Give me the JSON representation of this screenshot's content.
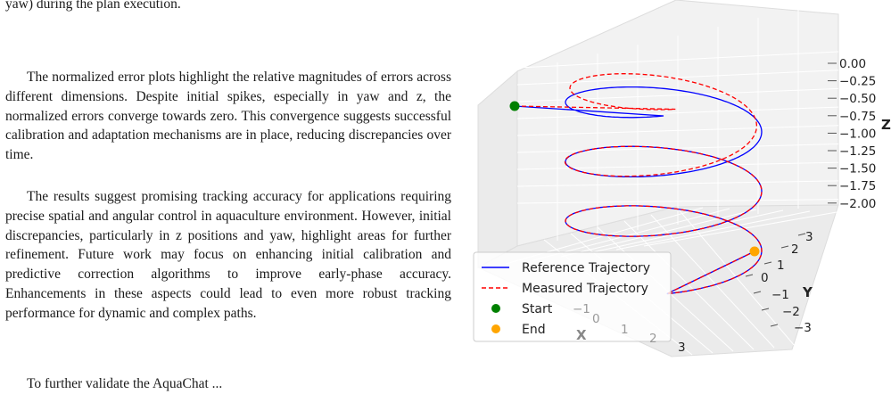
{
  "paper": {
    "caption_fragment": "yaw) during the plan execution.",
    "paragraph_1": "The normalized error plots highlight the relative magnitudes of errors across different dimensions. Despite initial spikes, especially in yaw and z, the normalized errors converge towards zero. This convergence suggests successful calibration and adaptation mechanisms are in place, reducing discrepancies over time.",
    "paragraph_2": "The results suggest promising tracking accuracy for applications requiring precise spatial and angular control in aquaculture environment. However, initial discrepancies, particularly in z positions and yaw, highlight areas for further refinement. Future work may focus on enhancing initial calibration and predictive correction algorithms to improve early-phase accuracy. Enhancements in these aspects could lead to even more robust tracking performance for dynamic and complex paths.",
    "paragraph_3_fragment": "To further validate the AquaChat ..."
  },
  "chart_data": {
    "type": "line3d",
    "title": "",
    "xlabel": "X",
    "ylabel": "Y",
    "zlabel": "Z",
    "x_ticks": [
      "−1",
      "0",
      "1",
      "2",
      "3"
    ],
    "y_ticks": [
      "−3",
      "−2",
      "−1",
      "0",
      "1",
      "2",
      "3"
    ],
    "z_ticks": [
      "0.00",
      "−0.25",
      "−0.50",
      "−0.75",
      "−1.00",
      "−1.25",
      "−1.50",
      "−1.75",
      "−2.00"
    ],
    "zlim": [
      -2.0,
      0.0
    ],
    "series": [
      {
        "name": "Reference Trajectory",
        "color": "#0000ff",
        "style": "solid"
      },
      {
        "name": "Measured Trajectory",
        "color": "#ff0000",
        "style": "dashed"
      }
    ],
    "markers": [
      {
        "name": "Start",
        "color": "#008000"
      },
      {
        "name": "End",
        "color": "#ffa500"
      }
    ],
    "legend_position": "lower-left"
  }
}
